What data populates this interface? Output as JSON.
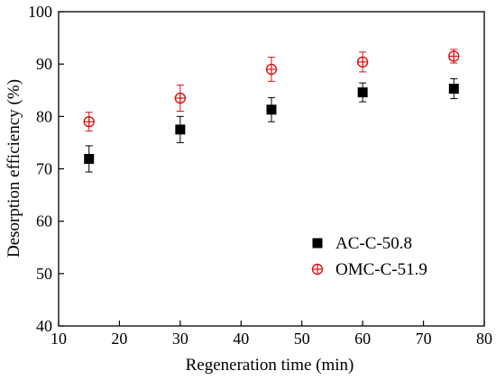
{
  "chart_data": {
    "type": "scatter",
    "title": "",
    "xlabel": "Regeneration time (min)",
    "ylabel": "Desorption efficiency (%)",
    "xlim": [
      10,
      80
    ],
    "ylim": [
      40,
      100
    ],
    "xticks": [
      10,
      20,
      30,
      40,
      50,
      60,
      70,
      80
    ],
    "yticks": [
      40,
      50,
      60,
      70,
      80,
      90,
      100
    ],
    "grid": false,
    "legend_position": "bottom-right",
    "series": [
      {
        "name": "AC-C-50.8",
        "marker": "filled-square",
        "color": "#000000",
        "x": [
          15,
          30,
          45,
          60,
          75
        ],
        "y": [
          71.9,
          77.5,
          81.3,
          84.6,
          85.3
        ],
        "error": [
          2.5,
          2.5,
          2.3,
          1.8,
          1.9
        ]
      },
      {
        "name": "OMC-C-51.9",
        "marker": "crossed-circle",
        "color": "#dd1111",
        "x": [
          15,
          30,
          45,
          60,
          75
        ],
        "y": [
          79.0,
          83.5,
          89.0,
          90.4,
          91.5
        ],
        "error": [
          1.8,
          2.5,
          2.3,
          1.9,
          1.3
        ]
      }
    ]
  }
}
